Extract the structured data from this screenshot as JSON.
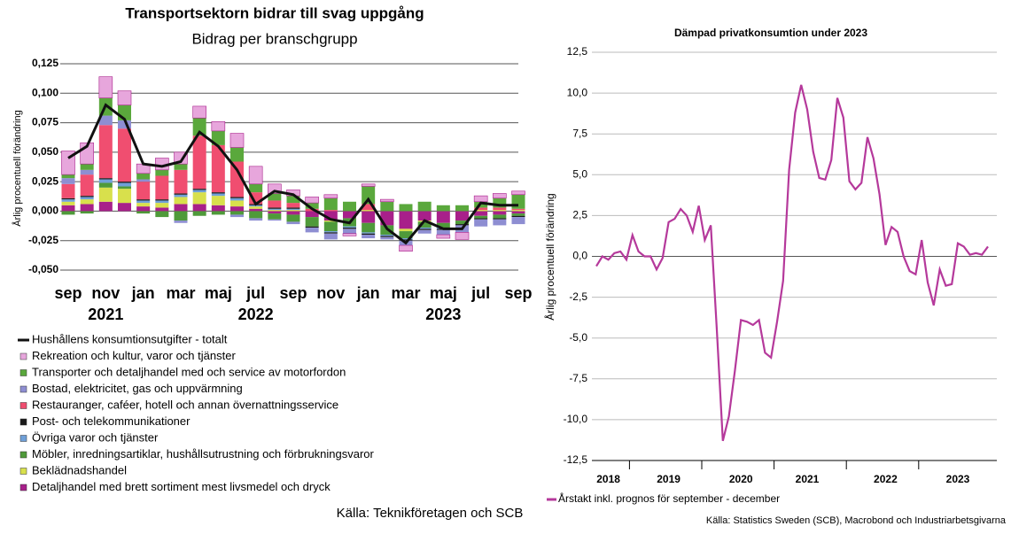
{
  "chart_data": [
    {
      "type": "bar",
      "stacked": true,
      "title": "Transportsektorn bidrar till svag uppgång",
      "subtitle": "Bidrag per branschgrupp",
      "y_label": "Årlig procentuell förändring",
      "source": "Källa: Teknikföretagen och SCB",
      "categories": [
        "sep",
        null,
        "nov",
        null,
        "jan",
        null,
        "mar",
        null,
        "maj",
        null,
        "jul",
        null,
        "sep",
        null,
        "nov",
        null,
        "jan",
        null,
        "mar",
        null,
        "maj",
        null,
        "jul",
        null,
        "sep"
      ],
      "year_labels": [
        "2021",
        "2022",
        "2023"
      ],
      "ylim": [
        -0.05,
        0.125
      ],
      "yticks": [
        {
          "value": -0.05,
          "label": "-0,050"
        },
        {
          "value": -0.025,
          "label": "-0,025"
        },
        {
          "value": 0,
          "label": "0,000"
        },
        {
          "value": 0.025,
          "label": "0,025"
        },
        {
          "value": 0.05,
          "label": "0,050"
        },
        {
          "value": 0.075,
          "label": "0,075"
        },
        {
          "value": 0.1,
          "label": "0,100"
        },
        {
          "value": 0.125,
          "label": "0,125"
        }
      ],
      "grid": true,
      "series": [
        {
          "name": "Hushållens konsumtionsutgifter - totalt",
          "type": "line",
          "color": "#111111",
          "values": [
            0.045,
            0.055,
            0.09,
            0.078,
            0.04,
            0.038,
            0.042,
            0.067,
            0.055,
            0.035,
            0.006,
            0.017,
            0.014,
            0.002,
            -0.007,
            -0.01,
            0.01,
            -0.015,
            -0.027,
            -0.008,
            -0.015,
            -0.015,
            0.007,
            0.005,
            0.005
          ]
        },
        {
          "name": "Rekreation och kultur, varor och tjänster",
          "color": "#e7a6dc",
          "values": [
            0.02,
            0.018,
            0.018,
            0.012,
            0.008,
            0.01,
            0.01,
            0.01,
            0.008,
            0.012,
            0.015,
            0.008,
            0.005,
            0.005,
            0.003,
            -0.002,
            0.002,
            0.002,
            -0.005,
            0.0,
            -0.003,
            -0.006,
            0.005,
            0.004,
            0.003
          ]
        },
        {
          "name": "Transporter och detaljhandel med och service av motorfordon",
          "color": "#5aa83c",
          "values": [
            0.003,
            0.005,
            0.015,
            0.013,
            0.005,
            0.005,
            0.005,
            0.015,
            0.012,
            0.012,
            0.007,
            0.006,
            0.006,
            0.005,
            0.01,
            0.008,
            0.015,
            0.008,
            0.006,
            0.008,
            0.005,
            0.005,
            0.005,
            0.008,
            0.012
          ]
        },
        {
          "name": "Bostad, elektricitet, gas och uppvärmning",
          "color": "#8e8ed2",
          "values": [
            0.005,
            0.004,
            0.008,
            0.007,
            0.002,
            0.0,
            -0.002,
            0.0,
            0.0,
            -0.002,
            -0.002,
            -0.001,
            -0.002,
            -0.004,
            -0.005,
            -0.004,
            -0.003,
            -0.002,
            -0.004,
            -0.003,
            -0.004,
            -0.006,
            -0.006,
            -0.005,
            -0.006
          ]
        },
        {
          "name": "Restauranger, caféer, hotell och annan övernattningsservice",
          "color": "#f04e70",
          "values": [
            0.012,
            0.018,
            0.045,
            0.045,
            0.015,
            0.02,
            0.02,
            0.045,
            0.04,
            0.03,
            0.01,
            0.006,
            0.004,
            0.002,
            0.001,
            0.0,
            0.005,
            0.0,
            0.0,
            0.0,
            0.0,
            0.0,
            0.002,
            0.002,
            0.001
          ]
        },
        {
          "name": "Post- och telekommunikationer",
          "color": "#1a1a1a",
          "values": [
            0.001,
            0.001,
            0.001,
            0.001,
            0.001,
            0.001,
            0.001,
            0.001,
            0.001,
            0.001,
            0.001,
            0.001,
            0.001,
            -0.001,
            -0.001,
            -0.001,
            -0.001,
            -0.001,
            -0.001,
            -0.001,
            -0.001,
            -0.001,
            -0.001,
            -0.001,
            -0.001
          ]
        },
        {
          "name": "Övriga varor och tjänster",
          "color": "#6fa0d8",
          "values": [
            0.002,
            0.002,
            0.003,
            0.003,
            0.002,
            0.002,
            0.002,
            0.002,
            0.002,
            0.002,
            0.001,
            0.001,
            0.001,
            0.0,
            -0.001,
            -0.001,
            -0.001,
            -0.001,
            -0.001,
            -0.001,
            -0.001,
            0.0,
            0.0,
            0.0,
            0.0
          ]
        },
        {
          "name": "Möbler, inredningsartiklar, hushållsutrustning och förbrukningsvaror",
          "color": "#4f9a3a",
          "values": [
            -0.003,
            -0.002,
            0.004,
            0.002,
            -0.002,
            -0.005,
            -0.008,
            -0.004,
            -0.003,
            -0.003,
            -0.006,
            -0.005,
            -0.006,
            -0.008,
            -0.008,
            -0.007,
            -0.008,
            -0.008,
            -0.006,
            -0.005,
            -0.004,
            -0.003,
            -0.002,
            -0.003,
            -0.002
          ]
        },
        {
          "name": "Beklädnadshandel",
          "color": "#d8e04c",
          "values": [
            0.003,
            0.004,
            0.012,
            0.012,
            0.003,
            0.004,
            0.006,
            0.01,
            0.008,
            0.005,
            0.002,
            0.001,
            0.001,
            0.0,
            -0.001,
            0.0,
            0.001,
            0.0,
            -0.002,
            -0.001,
            0.0,
            0.0,
            0.001,
            0.001,
            0.001
          ]
        },
        {
          "name": "Detaljhandel med brett sortiment mest livsmedel och dryck",
          "color": "#a8208a",
          "values": [
            0.005,
            0.006,
            0.008,
            0.007,
            0.004,
            0.003,
            0.006,
            0.006,
            0.005,
            0.004,
            0.002,
            -0.002,
            -0.003,
            -0.005,
            -0.008,
            -0.006,
            -0.01,
            -0.012,
            -0.015,
            -0.008,
            -0.01,
            -0.008,
            -0.004,
            -0.003,
            -0.002
          ]
        }
      ]
    },
    {
      "type": "line",
      "title": "Dämpad privatkonsumtion under 2023",
      "y_label": "Årlig procentuell förändring",
      "source": "Källa: Statistics Sweden (SCB), Macrobond och Industriarbetsgivarna",
      "categories": [
        null,
        null,
        "2018",
        null,
        null,
        null,
        null,
        null,
        null,
        null,
        null,
        null,
        "2019",
        null,
        null,
        null,
        null,
        null,
        null,
        null,
        null,
        null,
        null,
        null,
        "2020",
        null,
        null,
        null,
        null,
        null,
        null,
        null,
        null,
        null,
        null,
        "2021",
        null,
        null,
        null,
        null,
        null,
        null,
        null,
        null,
        null,
        null,
        null,
        null,
        "2022",
        null,
        null,
        null,
        null,
        null,
        null,
        null,
        null,
        null,
        null,
        null,
        "2023",
        null,
        null,
        null,
        null,
        null
      ],
      "ylim": [
        -12.5,
        12.5
      ],
      "yticks": [
        {
          "value": -12.5,
          "label": "-12,5"
        },
        {
          "value": -10,
          "label": "-10,0"
        },
        {
          "value": -7.5,
          "label": "-7,5"
        },
        {
          "value": -5,
          "label": "-5,0"
        },
        {
          "value": -2.5,
          "label": "-2,5"
        },
        {
          "value": 0,
          "label": "0,0"
        },
        {
          "value": 2.5,
          "label": "2,5"
        },
        {
          "value": 5,
          "label": "5,0"
        },
        {
          "value": 7.5,
          "label": "7,5"
        },
        {
          "value": 10,
          "label": "10,0"
        },
        {
          "value": 12.5,
          "label": "12,5"
        }
      ],
      "grid": true,
      "series": [
        {
          "name": "Årstakt inkl. prognos för september - december",
          "color": "#b5399b",
          "values": [
            -0.6,
            0.0,
            -0.2,
            0.2,
            0.3,
            -0.2,
            1.3,
            0.3,
            0.0,
            0.0,
            -0.8,
            -0.1,
            2.1,
            2.3,
            2.9,
            2.5,
            1.5,
            3.1,
            1.0,
            1.9,
            -4.5,
            -11.3,
            -9.8,
            -7.0,
            -3.9,
            -4.0,
            -4.2,
            -3.9,
            -5.9,
            -6.2,
            -4.0,
            -1.5,
            5.3,
            8.8,
            10.5,
            9.0,
            6.4,
            4.8,
            4.7,
            5.9,
            9.7,
            8.5,
            4.6,
            4.1,
            4.5,
            7.3,
            6.0,
            3.8,
            0.7,
            1.8,
            1.5,
            0.0,
            -0.9,
            -1.1,
            1.0,
            -1.6,
            -3.0,
            -0.8,
            -1.8,
            -1.7,
            0.8,
            0.6,
            0.1,
            0.2,
            0.1,
            0.6
          ]
        }
      ]
    }
  ]
}
